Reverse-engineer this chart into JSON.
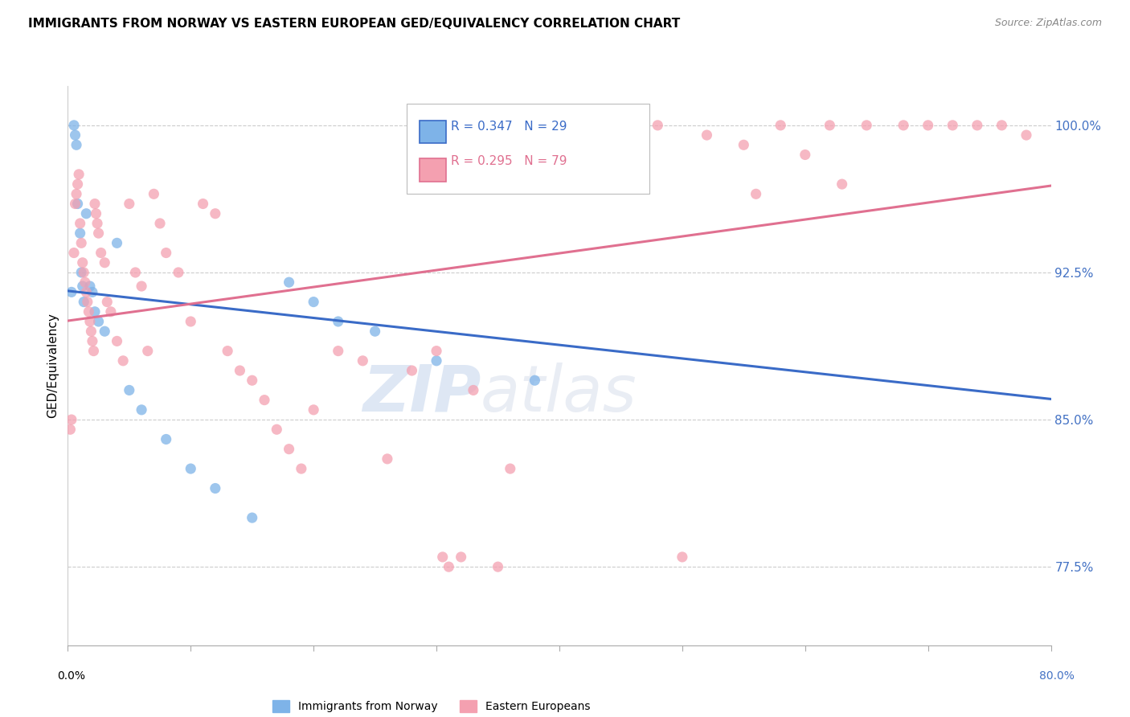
{
  "title": "IMMIGRANTS FROM NORWAY VS EASTERN EUROPEAN GED/EQUIVALENCY CORRELATION CHART",
  "source": "Source: ZipAtlas.com",
  "ylabel": "GED/Equivalency",
  "yticks": [
    77.5,
    85.0,
    92.5,
    100.0
  ],
  "legend_norway": "Immigrants from Norway",
  "legend_eastern": "Eastern Europeans",
  "r_norway": 0.347,
  "n_norway": 29,
  "r_eastern": 0.295,
  "n_eastern": 79,
  "norway_color": "#7EB3E8",
  "eastern_color": "#F4A0B0",
  "norway_line_color": "#3A6BC7",
  "eastern_line_color": "#E07090",
  "background_color": "#FFFFFF",
  "watermark_zip": "ZIP",
  "watermark_atlas": "atlas",
  "norway_x": [
    0.3,
    0.5,
    0.6,
    0.7,
    0.8,
    1.0,
    1.1,
    1.2,
    1.3,
    1.5,
    1.8,
    2.0,
    2.2,
    2.5,
    3.0,
    4.0,
    5.0,
    6.0,
    8.0,
    10.0,
    12.0,
    15.0,
    18.0,
    20.0,
    22.0,
    25.0,
    30.0,
    38.0,
    45.0
  ],
  "norway_y": [
    91.5,
    100.0,
    99.5,
    99.0,
    96.0,
    94.5,
    92.5,
    91.8,
    91.0,
    95.5,
    91.8,
    91.5,
    90.5,
    90.0,
    89.5,
    94.0,
    86.5,
    85.5,
    84.0,
    82.5,
    81.5,
    80.0,
    92.0,
    91.0,
    90.0,
    89.5,
    88.0,
    87.0,
    100.0
  ],
  "eastern_x": [
    0.2,
    0.3,
    0.5,
    0.6,
    0.7,
    0.8,
    0.9,
    1.0,
    1.1,
    1.2,
    1.3,
    1.4,
    1.5,
    1.6,
    1.7,
    1.8,
    1.9,
    2.0,
    2.1,
    2.2,
    2.3,
    2.4,
    2.5,
    2.7,
    3.0,
    3.2,
    3.5,
    4.0,
    4.5,
    5.0,
    5.5,
    6.0,
    6.5,
    7.0,
    7.5,
    8.0,
    9.0,
    10.0,
    11.0,
    12.0,
    13.0,
    14.0,
    15.0,
    16.0,
    17.0,
    18.0,
    19.0,
    20.0,
    22.0,
    24.0,
    26.0,
    28.0,
    30.0,
    33.0,
    36.0,
    38.0,
    40.0,
    42.0,
    44.0,
    48.0,
    52.0,
    55.0,
    58.0,
    62.0,
    65.0,
    68.0,
    70.0,
    72.0,
    74.0,
    76.0,
    78.0,
    60.0,
    63.0,
    56.0,
    30.5,
    31.0,
    32.0,
    35.0,
    50.0
  ],
  "eastern_y": [
    84.5,
    85.0,
    93.5,
    96.0,
    96.5,
    97.0,
    97.5,
    95.0,
    94.0,
    93.0,
    92.5,
    92.0,
    91.5,
    91.0,
    90.5,
    90.0,
    89.5,
    89.0,
    88.5,
    96.0,
    95.5,
    95.0,
    94.5,
    93.5,
    93.0,
    91.0,
    90.5,
    89.0,
    88.0,
    96.0,
    92.5,
    91.8,
    88.5,
    96.5,
    95.0,
    93.5,
    92.5,
    90.0,
    96.0,
    95.5,
    88.5,
    87.5,
    87.0,
    86.0,
    84.5,
    83.5,
    82.5,
    85.5,
    88.5,
    88.0,
    83.0,
    87.5,
    88.5,
    86.5,
    82.5,
    98.0,
    100.0,
    99.5,
    99.0,
    100.0,
    99.5,
    99.0,
    100.0,
    100.0,
    100.0,
    100.0,
    100.0,
    100.0,
    100.0,
    100.0,
    99.5,
    98.5,
    97.0,
    96.5,
    78.0,
    77.5,
    78.0,
    77.5,
    78.0
  ],
  "xmin": 0,
  "xmax": 80,
  "ymin": 73.5,
  "ymax": 102.0
}
